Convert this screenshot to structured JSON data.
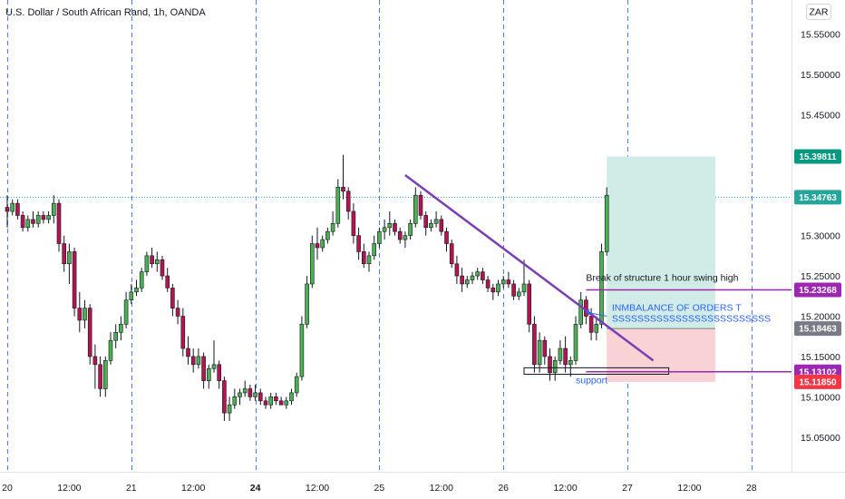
{
  "header": {
    "title": "U.S. Dollar / South African Rand, 1h, OANDA",
    "currency_button": "ZAR"
  },
  "chart_data": {
    "type": "candlestick",
    "title": "U.S. Dollar / South African Rand, 1h, OANDA",
    "y_ticks": [
      "15.55000",
      "15.50000",
      "15.45000",
      "15.40000",
      "15.35000",
      "15.30000",
      "15.25000",
      "15.20000",
      "15.15000",
      "15.10000",
      "15.05000",
      "15.00000"
    ],
    "y_tick_values": [
      15.55,
      15.5,
      15.45,
      15.4,
      15.35,
      15.3,
      15.25,
      15.2,
      15.15,
      15.1,
      15.05,
      15.0
    ],
    "ylim": [
      14.97,
      15.57
    ],
    "x_ticks": [
      {
        "label": "20",
        "bar": 0,
        "bold": false
      },
      {
        "label": "12:00",
        "bar": 12,
        "bold": false
      },
      {
        "label": "21",
        "bar": 24,
        "bold": false
      },
      {
        "label": "12:00",
        "bar": 36,
        "bold": false
      },
      {
        "label": "24",
        "bar": 48,
        "bold": true
      },
      {
        "label": "12:00",
        "bar": 60,
        "bold": false
      },
      {
        "label": "25",
        "bar": 72,
        "bold": false
      },
      {
        "label": "12:00",
        "bar": 84,
        "bold": false
      },
      {
        "label": "26",
        "bar": 96,
        "bold": false
      },
      {
        "label": "12:00",
        "bar": 108,
        "bold": false
      },
      {
        "label": "27",
        "bar": 120,
        "bold": false
      },
      {
        "label": "12:00",
        "bar": 132,
        "bold": false
      },
      {
        "label": "28",
        "bar": 144,
        "bold": false
      }
    ],
    "session_separators": [
      0,
      24,
      48,
      72,
      96,
      120,
      144
    ],
    "colors": {
      "up": "#4caf50",
      "down": "#b2154f",
      "trendline": "#7b3fb5",
      "separator": "#2962ff",
      "annotation_text": "#2962ff",
      "current_price_line": "#26a69a"
    },
    "ohlc": [
      [
        15.335,
        15.35,
        15.31,
        15.33
      ],
      [
        15.33,
        15.345,
        15.325,
        15.34
      ],
      [
        15.34,
        15.345,
        15.32,
        15.325
      ],
      [
        15.325,
        15.33,
        15.305,
        15.31
      ],
      [
        15.31,
        15.325,
        15.305,
        15.32
      ],
      [
        15.32,
        15.33,
        15.31,
        15.315
      ],
      [
        15.315,
        15.33,
        15.31,
        15.325
      ],
      [
        15.325,
        15.33,
        15.315,
        15.32
      ],
      [
        15.32,
        15.33,
        15.315,
        15.325
      ],
      [
        15.325,
        15.35,
        15.315,
        15.34
      ],
      [
        15.34,
        15.345,
        15.28,
        15.29
      ],
      [
        15.29,
        15.3,
        15.255,
        15.265
      ],
      [
        15.265,
        15.29,
        15.24,
        15.28
      ],
      [
        15.28,
        15.285,
        15.2,
        15.21
      ],
      [
        15.21,
        15.23,
        15.18,
        15.195
      ],
      [
        15.195,
        15.22,
        15.185,
        15.21
      ],
      [
        15.21,
        15.215,
        15.14,
        15.15
      ],
      [
        15.15,
        15.165,
        15.11,
        15.14
      ],
      [
        15.14,
        15.15,
        15.1,
        15.11
      ],
      [
        15.11,
        15.15,
        15.1,
        15.145
      ],
      [
        15.145,
        15.18,
        15.14,
        15.17
      ],
      [
        15.17,
        15.19,
        15.16,
        15.18
      ],
      [
        15.18,
        15.2,
        15.17,
        15.19
      ],
      [
        15.19,
        15.23,
        15.185,
        15.22
      ],
      [
        15.22,
        15.24,
        15.215,
        15.23
      ],
      [
        15.23,
        15.245,
        15.225,
        15.235
      ],
      [
        15.235,
        15.26,
        15.23,
        15.255
      ],
      [
        15.255,
        15.28,
        15.25,
        15.275
      ],
      [
        15.275,
        15.285,
        15.26,
        15.265
      ],
      [
        15.265,
        15.28,
        15.255,
        15.27
      ],
      [
        15.27,
        15.275,
        15.245,
        15.25
      ],
      [
        15.25,
        15.26,
        15.23,
        15.235
      ],
      [
        15.235,
        15.24,
        15.2,
        15.21
      ],
      [
        15.21,
        15.22,
        15.19,
        15.2
      ],
      [
        15.2,
        15.21,
        15.15,
        15.16
      ],
      [
        15.16,
        15.175,
        15.14,
        15.15
      ],
      [
        15.15,
        15.16,
        15.13,
        15.14
      ],
      [
        15.14,
        15.16,
        15.135,
        15.15
      ],
      [
        15.15,
        15.155,
        15.11,
        15.12
      ],
      [
        15.12,
        15.14,
        15.11,
        15.135
      ],
      [
        15.135,
        15.17,
        15.13,
        15.14
      ],
      [
        15.14,
        15.145,
        15.11,
        15.12
      ],
      [
        15.12,
        15.125,
        15.07,
        15.08
      ],
      [
        15.08,
        15.1,
        15.07,
        15.09
      ],
      [
        15.09,
        15.11,
        15.085,
        15.1
      ],
      [
        15.1,
        15.11,
        15.09,
        15.105
      ],
      [
        15.105,
        15.12,
        15.1,
        15.11
      ],
      [
        15.11,
        15.115,
        15.095,
        15.1
      ],
      [
        15.1,
        15.115,
        15.095,
        15.105
      ],
      [
        15.105,
        15.11,
        15.09,
        15.095
      ],
      [
        15.095,
        15.1,
        15.085,
        15.09
      ],
      [
        15.09,
        15.105,
        15.085,
        15.1
      ],
      [
        15.1,
        15.105,
        15.09,
        15.095
      ],
      [
        15.095,
        15.1,
        15.09,
        15.09
      ],
      [
        15.09,
        15.1,
        15.085,
        15.095
      ],
      [
        15.095,
        15.11,
        15.09,
        15.105
      ],
      [
        15.105,
        15.13,
        15.1,
        15.125
      ],
      [
        15.125,
        15.2,
        15.12,
        15.19
      ],
      [
        15.19,
        15.25,
        15.185,
        15.24
      ],
      [
        15.24,
        15.3,
        15.235,
        15.29
      ],
      [
        15.29,
        15.31,
        15.27,
        15.285
      ],
      [
        15.285,
        15.3,
        15.28,
        15.295
      ],
      [
        15.295,
        15.31,
        15.29,
        15.305
      ],
      [
        15.305,
        15.33,
        15.3,
        15.315
      ],
      [
        15.315,
        15.37,
        15.31,
        15.36
      ],
      [
        15.36,
        15.4,
        15.345,
        15.355
      ],
      [
        15.355,
        15.36,
        15.32,
        15.33
      ],
      [
        15.33,
        15.34,
        15.29,
        15.3
      ],
      [
        15.3,
        15.31,
        15.27,
        15.28
      ],
      [
        15.28,
        15.29,
        15.26,
        15.265
      ],
      [
        15.265,
        15.28,
        15.255,
        15.275
      ],
      [
        15.275,
        15.3,
        15.27,
        15.29
      ],
      [
        15.29,
        15.31,
        15.285,
        15.305
      ],
      [
        15.305,
        15.32,
        15.295,
        15.31
      ],
      [
        15.31,
        15.33,
        15.3,
        15.315
      ],
      [
        15.315,
        15.32,
        15.3,
        15.305
      ],
      [
        15.305,
        15.31,
        15.29,
        15.295
      ],
      [
        15.295,
        15.305,
        15.285,
        15.3
      ],
      [
        15.3,
        15.32,
        15.295,
        15.315
      ],
      [
        15.315,
        15.36,
        15.31,
        15.35
      ],
      [
        15.35,
        15.355,
        15.32,
        15.325
      ],
      [
        15.325,
        15.33,
        15.3,
        15.31
      ],
      [
        15.31,
        15.32,
        15.305,
        15.315
      ],
      [
        15.315,
        15.33,
        15.31,
        15.32
      ],
      [
        15.32,
        15.325,
        15.3,
        15.305
      ],
      [
        15.305,
        15.31,
        15.28,
        15.29
      ],
      [
        15.29,
        15.295,
        15.26,
        15.265
      ],
      [
        15.265,
        15.275,
        15.24,
        15.25
      ],
      [
        15.25,
        15.26,
        15.23,
        15.24
      ],
      [
        15.24,
        15.25,
        15.235,
        15.245
      ],
      [
        15.245,
        15.255,
        15.24,
        15.25
      ],
      [
        15.25,
        15.26,
        15.245,
        15.255
      ],
      [
        15.255,
        15.26,
        15.24,
        15.245
      ],
      [
        15.245,
        15.25,
        15.23,
        15.235
      ],
      [
        15.235,
        15.24,
        15.22,
        15.23
      ],
      [
        15.23,
        15.245,
        15.225,
        15.24
      ],
      [
        15.24,
        15.25,
        15.235,
        15.245
      ],
      [
        15.245,
        15.255,
        15.235,
        15.24
      ],
      [
        15.24,
        15.245,
        15.22,
        15.225
      ],
      [
        15.225,
        15.235,
        15.22,
        15.23
      ],
      [
        15.23,
        15.27,
        15.225,
        15.24
      ],
      [
        15.24,
        15.245,
        15.18,
        15.19
      ],
      [
        15.19,
        15.2,
        15.13,
        15.14
      ],
      [
        15.14,
        15.18,
        15.13,
        15.17
      ],
      [
        15.17,
        15.175,
        15.14,
        15.15
      ],
      [
        15.15,
        15.16,
        15.12,
        15.13
      ],
      [
        15.13,
        15.15,
        15.12,
        15.145
      ],
      [
        15.145,
        15.17,
        15.14,
        15.16
      ],
      [
        15.16,
        15.175,
        15.13,
        15.14
      ],
      [
        15.14,
        15.15,
        15.125,
        15.145
      ],
      [
        15.145,
        15.2,
        15.14,
        15.19
      ],
      [
        15.19,
        15.23,
        15.185,
        15.22
      ],
      [
        15.22,
        15.225,
        15.19,
        15.2
      ],
      [
        15.2,
        15.21,
        15.17,
        15.18
      ],
      [
        15.18,
        15.2,
        15.17,
        15.19
      ],
      [
        15.19,
        15.29,
        15.185,
        15.28
      ],
      [
        15.28,
        15.36,
        15.275,
        15.35
      ]
    ],
    "trendline": {
      "start": {
        "bar": 77,
        "price": 15.375
      },
      "end": {
        "bar": 125,
        "price": 15.145
      }
    },
    "horizontal_rays": [
      {
        "start_bar": 112,
        "price": 15.23268,
        "label": "15.23268",
        "bg": "#9c27b0"
      },
      {
        "start_bar": 112,
        "price": 15.13102,
        "label": "15.13102",
        "bg": "#9c27b0"
      }
    ],
    "price_labels": [
      {
        "label": "15.39811",
        "price": 15.39811,
        "bg": "#089981"
      },
      {
        "label": "15.34763",
        "price": 15.34763,
        "bg": "#26a69a"
      },
      {
        "label": "15.18463",
        "price": 15.18463,
        "bg": "#787b86"
      },
      {
        "label": "15.11850",
        "price": 15.1185,
        "bg": "#f23645"
      }
    ],
    "position": {
      "start_bar": 116,
      "end_bar": 137,
      "target": 15.39811,
      "entry": 15.18463,
      "stop": 15.1185,
      "profit_color": "#d1ece6",
      "loss_color": "#f9d2d6"
    },
    "support_box": {
      "start_bar": 100,
      "end_bar": 128,
      "top": 15.136,
      "bottom": 15.128,
      "label": "support"
    },
    "annotations": {
      "bos": {
        "text": "Break of structure 1 hour swing high",
        "bar": 112,
        "price": 15.244
      },
      "imbalance": {
        "text": "INMBALANCE OF ORDERS T",
        "bar": 117,
        "price": 15.207
      },
      "imbalance_sub": {
        "text": "SSSSSSSSSSSSSSSSSSSSSSSSS",
        "bar": 117,
        "price": 15.193
      },
      "arrow": {
        "from_bar": 116,
        "from_price": 15.2,
        "to_bar": 112,
        "to_price": 15.205
      }
    }
  }
}
